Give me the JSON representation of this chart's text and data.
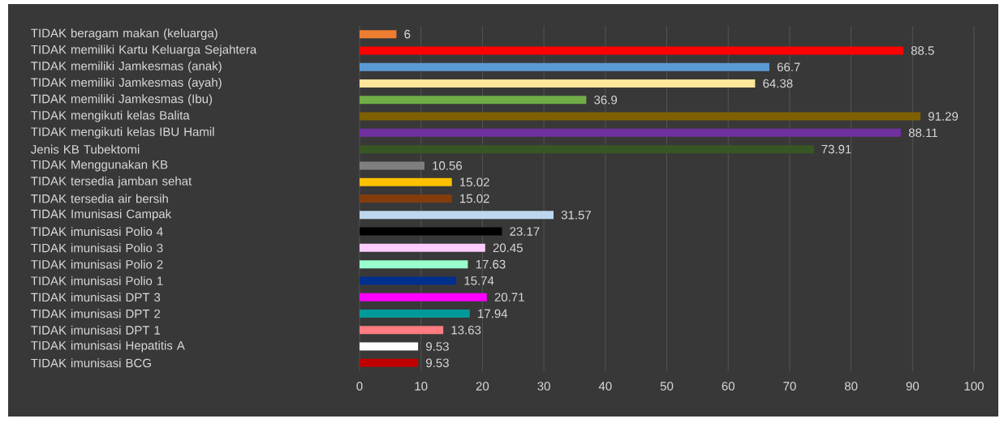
{
  "chart_data": {
    "type": "bar",
    "orientation": "horizontal",
    "categories": [
      "TIDAK beragam makan (keluarga)",
      "TIDAK memiliki Kartu Keluarga Sejahtera",
      "TIDAK memiliki Jamkesmas (anak)",
      "TIDAK memiliki Jamkesmas (ayah)",
      "TIDAK memiliki Jamkesmas (Ibu)",
      "TIDAK mengikuti kelas Balita",
      "TIDAK mengikuti kelas IBU Hamil",
      "Jenis KB Tubektomi",
      "TIDAK Menggunakan KB",
      "TIDAK tersedia jamban sehat",
      "TIDAK tersedia air bersih",
      "TIDAK Imunisasi Campak",
      "TIDAK imunisasi Polio 4",
      "TIDAK imunisasi Polio 3",
      "TIDAK imunisasi Polio 2",
      "TIDAK imunisasi Polio 1",
      "TIDAK imunisasi DPT 3",
      "TIDAK imunisasi DPT 2",
      "TIDAK imunisasi DPT 1",
      "TIDAK imunisasi Hepatitis A",
      "TIDAK imunisasi BCG"
    ],
    "values": [
      6,
      88.5,
      66.7,
      64.38,
      36.9,
      91.29,
      88.11,
      73.91,
      10.56,
      15.02,
      15.02,
      31.57,
      23.17,
      20.45,
      17.63,
      15.74,
      20.71,
      17.94,
      13.63,
      9.53,
      9.53
    ],
    "colors": [
      "#ed7d31",
      "#ff0000",
      "#5b9bd5",
      "#ffe699",
      "#70ad47",
      "#7f6000",
      "#7030a0",
      "#375623",
      "#7f7f7f",
      "#ffc000",
      "#843c0c",
      "#bdd7ee",
      "#000000",
      "#ffccff",
      "#99ffcc",
      "#002f8e",
      "#ff00ff",
      "#009999",
      "#ff7c80",
      "#ffffff",
      "#c00000"
    ],
    "xlim": [
      0,
      100
    ],
    "xticks": [
      0,
      10,
      20,
      30,
      40,
      50,
      60,
      70,
      80,
      90,
      100
    ],
    "grid": "x",
    "data_labels": true
  }
}
